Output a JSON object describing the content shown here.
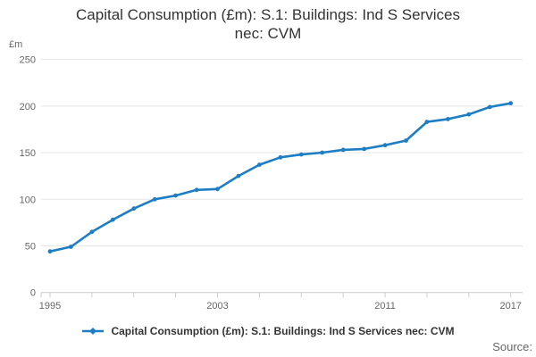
{
  "title_line1": "Capital Consumption (£m): S.1: Buildings: Ind S Services",
  "title_line2": "nec: CVM",
  "y_axis_unit": "£m",
  "source_label": "Source:",
  "legend": {
    "label": "Capital Consumption (£m): S.1: Buildings: Ind S Services nec: CVM"
  },
  "colors": {
    "line": "#1e7ec3",
    "grid": "#e6e6e6",
    "axis": "#cccccc",
    "tick_label": "#666666",
    "text": "#333333"
  },
  "chart_data": {
    "type": "line",
    "title": "Capital Consumption (£m): S.1: Buildings: Ind S Services nec: CVM",
    "xlabel": "",
    "ylabel": "£m",
    "x": [
      1995,
      1996,
      1997,
      1998,
      1999,
      2000,
      2001,
      2002,
      2003,
      2004,
      2005,
      2006,
      2007,
      2008,
      2009,
      2010,
      2011,
      2012,
      2013,
      2014,
      2015,
      2016,
      2017
    ],
    "series": [
      {
        "name": "Capital Consumption (£m): S.1: Buildings: Ind S Services nec: CVM",
        "values": [
          44,
          49,
          65,
          78,
          90,
          100,
          104,
          110,
          111,
          125,
          137,
          145,
          148,
          150,
          153,
          154,
          158,
          163,
          183,
          186,
          191,
          199,
          203
        ]
      }
    ],
    "ylim": [
      0,
      250
    ],
    "yticks": [
      0,
      50,
      100,
      150,
      200,
      250
    ],
    "xticks_labeled": [
      1995,
      2003,
      2011,
      2017
    ],
    "xtick_minor_step": 2,
    "grid": "horizontal",
    "legend_position": "bottom",
    "marker": "circle"
  }
}
